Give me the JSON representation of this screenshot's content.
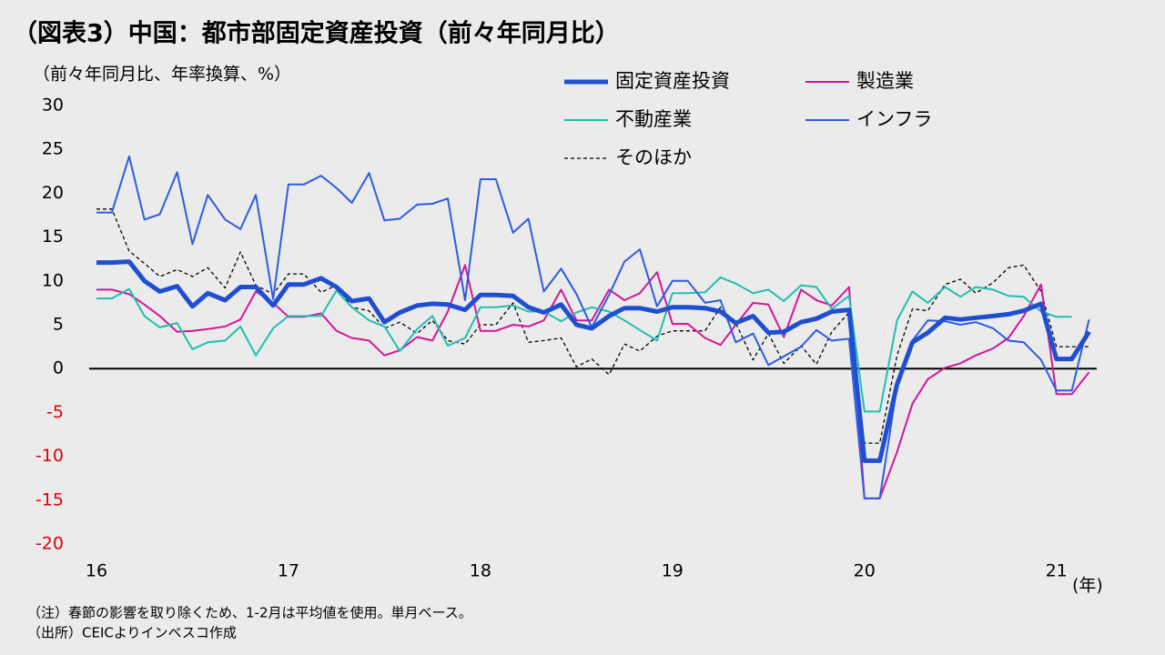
{
  "chart_data": {
    "type": "line",
    "title": "（図表3）中国：都市部固定資産投資（前々年同月比）",
    "y_axis_label": "（前々年同月比、年率換算、%）",
    "x_axis_label": "(年)",
    "notes": [
      "（注）春節の影響を取り除くため、1-2月は平均値を使用。単月ベース。",
      "（出所）CEICよりインベスコ作成"
    ],
    "x": [
      16,
      16.08,
      16.17,
      16.25,
      16.33,
      16.42,
      16.5,
      16.58,
      16.67,
      16.75,
      16.83,
      16.92,
      17,
      17.08,
      17.17,
      17.25,
      17.33,
      17.42,
      17.5,
      17.58,
      17.67,
      17.75,
      17.83,
      17.92,
      18,
      18.08,
      18.17,
      18.25,
      18.33,
      18.42,
      18.5,
      18.58,
      18.67,
      18.75,
      18.83,
      18.92,
      19,
      19.08,
      19.17,
      19.25,
      19.33,
      19.42,
      19.5,
      19.58,
      19.67,
      19.75,
      19.83,
      19.92,
      20,
      20.08,
      20.17,
      20.25,
      20.33,
      20.42,
      20.5,
      20.58,
      20.67,
      20.75,
      20.83,
      20.92,
      21,
      21.08,
      21.17
    ],
    "series": [
      {
        "name": "固定資産投資",
        "color": "#1f4fd0",
        "line_width": 5,
        "values": [
          12.1,
          12.1,
          12.2,
          10,
          8.8,
          9.4,
          7.1,
          8.6,
          7.8,
          9.3,
          9.3,
          7.2,
          9.6,
          9.6,
          10.3,
          9.3,
          7.7,
          8,
          5.3,
          6.4,
          7.2,
          7.4,
          7.3,
          6.7,
          8.4,
          8.4,
          8.3,
          7,
          6.4,
          7.3,
          5,
          4.6,
          6,
          6.9,
          6.9,
          6.5,
          7,
          7,
          6.9,
          6.5,
          5.2,
          6,
          4.1,
          4.2,
          5.3,
          5.7,
          6.5,
          6.7,
          -10.5,
          -10.5,
          -1.8,
          3,
          4.1,
          5.8,
          5.6,
          5.8,
          6,
          6.2,
          6.6,
          7.4,
          1.1,
          1.1,
          4.2
        ]
      },
      {
        "name": "製造業",
        "color": "#d4169a",
        "line_width": 2,
        "values": [
          9,
          9,
          8.5,
          7.3,
          6,
          4.2,
          4.3,
          4.5,
          4.8,
          5.6,
          8.8,
          7.5,
          5.9,
          5.9,
          6.3,
          4.3,
          3.5,
          3.2,
          1.5,
          2.1,
          3.6,
          3.2,
          6.5,
          11.8,
          4.3,
          4.3,
          5,
          4.8,
          5.5,
          9,
          5.5,
          5.5,
          9,
          7.8,
          8.6,
          11,
          5.1,
          5.1,
          3.5,
          2.7,
          5,
          7.5,
          7.3,
          3.6,
          9,
          7.8,
          7.2,
          9.3,
          -14.8,
          -14.8,
          -9.5,
          -4,
          -1.2,
          0.1,
          0.6,
          1.5,
          2.3,
          3.5,
          6,
          9.6,
          -2.9,
          -2.9,
          -0.4
        ]
      },
      {
        "name": "不動産業",
        "color": "#1fbfb0",
        "line_width": 2,
        "values": [
          8,
          8,
          9.1,
          6,
          4.7,
          5.2,
          2.2,
          3,
          3.2,
          4.8,
          1.5,
          4.6,
          6,
          6,
          6,
          8.9,
          7,
          5.5,
          4.8,
          2,
          4.5,
          6,
          2.6,
          3.5,
          7,
          7,
          7.2,
          6.5,
          6.5,
          5.4,
          6.4,
          7,
          6.5,
          5.5,
          4.4,
          3.2,
          8.6,
          8.6,
          8.7,
          10.4,
          9.7,
          8.6,
          9,
          7.7,
          9.5,
          9.3,
          6.8,
          8.3,
          -4.9,
          -4.9,
          5.5,
          8.8,
          7.5,
          9.3,
          8.2,
          9.3,
          9,
          8.3,
          8.2,
          6.5,
          5.9,
          5.9,
          null
        ]
      },
      {
        "name": "インフラ",
        "color": "#2d5be3",
        "line_width": 2,
        "values": [
          17.8,
          17.8,
          24.2,
          17,
          17.6,
          22.4,
          14.2,
          19.8,
          17,
          15.9,
          19.8,
          7.9,
          21,
          21,
          22,
          20.6,
          18.9,
          22.3,
          16.9,
          17.1,
          18.7,
          18.8,
          19.4,
          7.8,
          21.6,
          21.6,
          15.5,
          17.1,
          8.8,
          11.4,
          8.5,
          4.7,
          8.4,
          12.2,
          13.6,
          7.1,
          10,
          10,
          7.5,
          7.8,
          3,
          4,
          0.4,
          1.4,
          2.5,
          4.4,
          3.2,
          3.4,
          -14.8,
          -14.8,
          -2,
          3.2,
          5.5,
          5.4,
          5,
          5.3,
          4.6,
          3.2,
          3,
          1,
          -2.5,
          -2.5,
          5.6
        ]
      },
      {
        "name": "そのほか",
        "color": "#000000",
        "line_width": 1.3,
        "line_style": "dashed",
        "values": [
          18.2,
          18.2,
          13.4,
          12,
          10.5,
          11.3,
          10.5,
          11.5,
          9.2,
          13.3,
          9.5,
          8.5,
          10.8,
          10.8,
          8.7,
          9.5,
          7,
          6.6,
          4.6,
          5.3,
          4,
          5.5,
          3.2,
          2.8,
          5,
          5,
          7.5,
          3,
          3.2,
          3.5,
          0.2,
          1.1,
          -0.7,
          2.8,
          2,
          3.7,
          4.3,
          4.3,
          4.3,
          7,
          5.2,
          1,
          4,
          0.6,
          2.6,
          0.5,
          4.2,
          6.4,
          -8.5,
          -8.5,
          1.5,
          6.8,
          6.6,
          9.6,
          10.2,
          8.6,
          9.8,
          11.5,
          11.8,
          8.8,
          2.5,
          2.5,
          2.5
        ]
      }
    ],
    "xlim": [
      16,
      21.21
    ],
    "xticks": [
      16,
      17,
      18,
      19,
      20,
      21
    ],
    "ylim": [
      -20,
      30
    ],
    "yticks": [
      30,
      25,
      20,
      15,
      10,
      5,
      0,
      -5,
      -10,
      -15,
      -20
    ],
    "negative_tick_color": "#e00000",
    "grid": false
  }
}
